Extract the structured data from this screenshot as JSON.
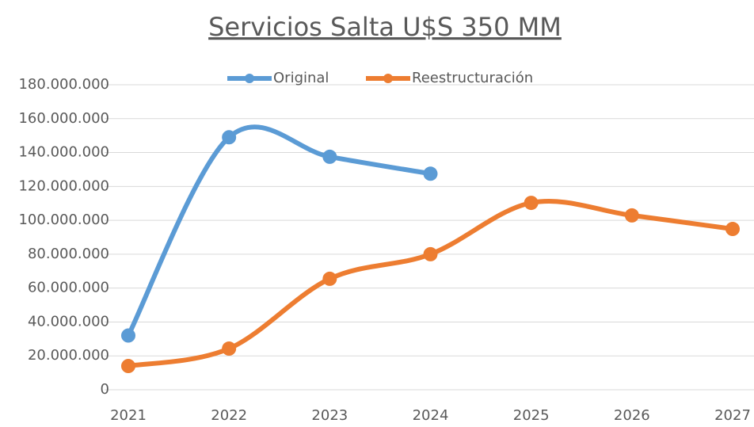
{
  "chart_data": {
    "type": "line",
    "title": "Servicios Salta U$S 350 MM",
    "x": [
      2021,
      2022,
      2023,
      2024,
      2025,
      2026,
      2027
    ],
    "xlim": [
      2021,
      2027
    ],
    "xticks": [
      2021,
      2022,
      2023,
      2024,
      2025,
      2026,
      2027
    ],
    "ylim": [
      0,
      180000000
    ],
    "yticks": [
      0,
      {
        "value": 20000000,
        "label": "20.000.000"
      },
      {
        "value": 40000000,
        "label": "40.000.000"
      },
      {
        "value": 60000000,
        "label": "60.000.000"
      },
      {
        "value": 80000000,
        "label": "80.000.000"
      },
      {
        "value": 100000000,
        "label": "100.000.000"
      },
      {
        "value": 120000000,
        "label": "120.000.000"
      },
      {
        "value": 140000000,
        "label": "140.000.000"
      },
      {
        "value": 160000000,
        "label": "160.000.000"
      },
      {
        "value": 180000000,
        "label": "180.000.000"
      }
    ],
    "grid": true,
    "legend": "top",
    "smooth": true,
    "series": [
      {
        "name": "Original",
        "color": "#5b9bd5",
        "values": [
          32000000,
          149000000,
          137500000,
          127500000,
          null,
          null,
          null
        ]
      },
      {
        "name": "Reestructuración",
        "color": "#ed7d31",
        "values": [
          14000000,
          24300000,
          65500000,
          80000000,
          110300000,
          102900000,
          94900000
        ]
      }
    ]
  }
}
